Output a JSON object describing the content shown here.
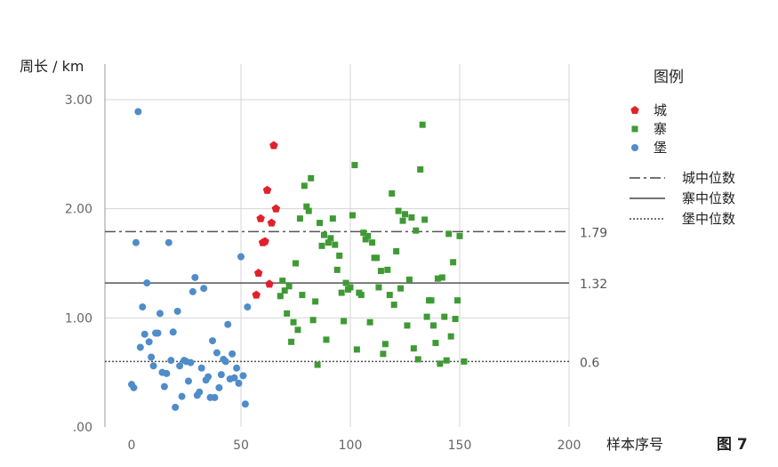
{
  "chart_data": {
    "type": "scatter",
    "ylabel": "周长 / km",
    "xlabel": "样本序号",
    "figure_label": "图 7",
    "xlim": [
      0,
      200
    ],
    "ylim": [
      0,
      3.0
    ],
    "x_ticks": [
      {
        "value": 0,
        "label": "0"
      },
      {
        "value": 50,
        "label": "50"
      },
      {
        "value": 100,
        "label": "100"
      },
      {
        "value": 150,
        "label": "150"
      },
      {
        "value": 200,
        "label": "200"
      }
    ],
    "y_ticks": [
      {
        "value": 0,
        "label": ".00"
      },
      {
        "value": 1.0,
        "label": "1.00"
      },
      {
        "value": 2.0,
        "label": "2.00"
      },
      {
        "value": 3.0,
        "label": "3.00"
      }
    ],
    "grid": {
      "vertical": true,
      "horizontal": true
    },
    "legend": {
      "title": "图例",
      "position": "right",
      "series_entries": [
        "城",
        "寨",
        "堡"
      ],
      "line_entries": [
        "城中位数",
        "寨中位数",
        "堡中位数"
      ]
    },
    "reference_lines": [
      {
        "name": "城中位数",
        "value": 1.79,
        "label": "1.79",
        "style": "dashdot",
        "color": "#555555"
      },
      {
        "name": "寨中位数",
        "value": 1.32,
        "label": "1.32",
        "style": "solid",
        "color": "#555555"
      },
      {
        "name": "堡中位数",
        "value": 0.6,
        "label": "0.6",
        "style": "dotted",
        "color": "#555555"
      }
    ],
    "series": [
      {
        "name": "城",
        "marker": "pentagon",
        "color": "#e0212c",
        "points": [
          [
            57,
            1.21
          ],
          [
            58,
            1.41
          ],
          [
            59,
            1.91
          ],
          [
            60,
            1.69
          ],
          [
            61,
            1.7
          ],
          [
            62,
            2.17
          ],
          [
            63,
            1.31
          ],
          [
            64,
            1.87
          ],
          [
            65,
            2.58
          ],
          [
            66,
            2.0
          ]
        ]
      },
      {
        "name": "寨",
        "marker": "square",
        "color": "#3f9a35",
        "points": [
          [
            68,
            1.2
          ],
          [
            69,
            1.34
          ],
          [
            70,
            1.25
          ],
          [
            71,
            1.04
          ],
          [
            72,
            1.29
          ],
          [
            73,
            0.78
          ],
          [
            74,
            0.96
          ],
          [
            75,
            1.5
          ],
          [
            76,
            0.89
          ],
          [
            77,
            1.91
          ],
          [
            78,
            1.21
          ],
          [
            79,
            2.21
          ],
          [
            80,
            2.02
          ],
          [
            81,
            1.98
          ],
          [
            82,
            2.28
          ],
          [
            83,
            0.98
          ],
          [
            84,
            1.15
          ],
          [
            85,
            0.57
          ],
          [
            86,
            1.87
          ],
          [
            87,
            1.66
          ],
          [
            88,
            1.76
          ],
          [
            89,
            0.8
          ],
          [
            90,
            1.69
          ],
          [
            91,
            1.73
          ],
          [
            92,
            1.91
          ],
          [
            93,
            1.67
          ],
          [
            94,
            1.44
          ],
          [
            95,
            1.57
          ],
          [
            96,
            1.23
          ],
          [
            97,
            0.97
          ],
          [
            98,
            1.32
          ],
          [
            99,
            1.26
          ],
          [
            100,
            1.28
          ],
          [
            101,
            1.94
          ],
          [
            102,
            2.4
          ],
          [
            103,
            0.71
          ],
          [
            104,
            1.23
          ],
          [
            105,
            1.21
          ],
          [
            106,
            1.78
          ],
          [
            107,
            1.72
          ],
          [
            108,
            1.75
          ],
          [
            109,
            0.96
          ],
          [
            110,
            1.69
          ],
          [
            111,
            1.55
          ],
          [
            112,
            1.55
          ],
          [
            113,
            1.28
          ],
          [
            114,
            1.43
          ],
          [
            115,
            0.67
          ],
          [
            116,
            0.76
          ],
          [
            117,
            1.44
          ],
          [
            118,
            1.21
          ],
          [
            119,
            2.14
          ],
          [
            120,
            1.12
          ],
          [
            121,
            1.61
          ],
          [
            122,
            1.98
          ],
          [
            123,
            1.27
          ],
          [
            124,
            1.89
          ],
          [
            125,
            1.95
          ],
          [
            126,
            0.93
          ],
          [
            127,
            1.35
          ],
          [
            128,
            1.92
          ],
          [
            129,
            0.72
          ],
          [
            130,
            1.8
          ],
          [
            131,
            0.62
          ],
          [
            132,
            2.36
          ],
          [
            133,
            2.77
          ],
          [
            134,
            1.9
          ],
          [
            135,
            1.01
          ],
          [
            136,
            1.16
          ],
          [
            137,
            1.16
          ],
          [
            138,
            0.93
          ],
          [
            139,
            0.77
          ],
          [
            140,
            1.36
          ],
          [
            141,
            0.58
          ],
          [
            142,
            1.37
          ],
          [
            143,
            1.01
          ],
          [
            144,
            0.61
          ],
          [
            145,
            1.77
          ],
          [
            146,
            0.83
          ],
          [
            147,
            1.51
          ],
          [
            148,
            0.99
          ],
          [
            149,
            1.16
          ],
          [
            150,
            1.75
          ],
          [
            152,
            0.6
          ]
        ]
      },
      {
        "name": "堡",
        "marker": "circle",
        "color": "#4f8cc9",
        "points": [
          [
            0,
            0.39
          ],
          [
            1,
            0.36
          ],
          [
            2,
            1.69
          ],
          [
            3,
            2.89
          ],
          [
            4,
            0.73
          ],
          [
            5,
            1.1
          ],
          [
            6,
            0.85
          ],
          [
            7,
            1.32
          ],
          [
            8,
            0.78
          ],
          [
            9,
            0.64
          ],
          [
            10,
            0.56
          ],
          [
            11,
            0.86
          ],
          [
            12,
            0.86
          ],
          [
            13,
            1.04
          ],
          [
            14,
            0.5
          ],
          [
            15,
            0.37
          ],
          [
            16,
            0.49
          ],
          [
            17,
            1.69
          ],
          [
            18,
            0.61
          ],
          [
            19,
            0.87
          ],
          [
            20,
            0.18
          ],
          [
            21,
            1.06
          ],
          [
            22,
            0.56
          ],
          [
            23,
            0.28
          ],
          [
            24,
            0.61
          ],
          [
            25,
            0.6
          ],
          [
            26,
            0.42
          ],
          [
            27,
            0.59
          ],
          [
            28,
            1.24
          ],
          [
            29,
            1.37
          ],
          [
            30,
            0.29
          ],
          [
            31,
            0.32
          ],
          [
            32,
            0.54
          ],
          [
            33,
            1.27
          ],
          [
            34,
            0.43
          ],
          [
            35,
            0.46
          ],
          [
            36,
            0.27
          ],
          [
            37,
            0.79
          ],
          [
            38,
            0.27
          ],
          [
            39,
            0.68
          ],
          [
            40,
            0.36
          ],
          [
            41,
            0.48
          ],
          [
            42,
            0.62
          ],
          [
            43,
            0.6
          ],
          [
            44,
            0.94
          ],
          [
            45,
            0.44
          ],
          [
            46,
            0.67
          ],
          [
            47,
            0.45
          ],
          [
            48,
            0.54
          ],
          [
            49,
            0.4
          ],
          [
            50,
            1.56
          ],
          [
            51,
            0.47
          ],
          [
            52,
            0.21
          ],
          [
            53,
            1.1
          ]
        ]
      }
    ]
  }
}
